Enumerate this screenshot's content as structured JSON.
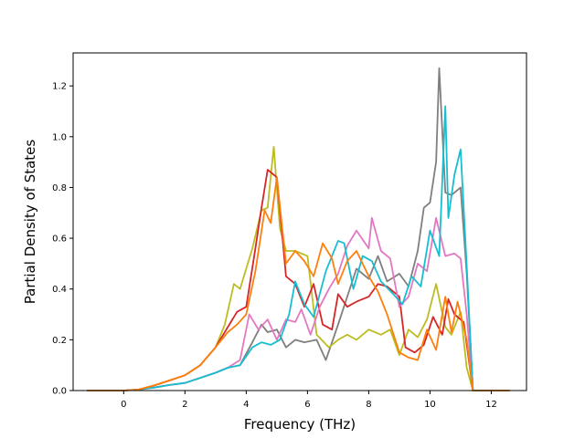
{
  "chart_data": {
    "type": "line",
    "title": "",
    "xlabel": "Frequency (THz)",
    "ylabel": "Partial Density of States",
    "xlim": [
      -1.65,
      13.15
    ],
    "ylim": [
      0.0,
      1.33
    ],
    "xticks": [
      0,
      2,
      4,
      6,
      8,
      10,
      12
    ],
    "yticks": [
      0.0,
      0.2,
      0.4,
      0.6,
      0.8,
      1.0,
      1.2
    ],
    "xtick_labels": [
      "0",
      "2",
      "4",
      "6",
      "8",
      "10",
      "12"
    ],
    "ytick_labels": [
      "0.0",
      "0.2",
      "0.4",
      "0.6",
      "0.8",
      "1.0",
      "1.2"
    ],
    "grid": false,
    "legend": "none",
    "series": [
      {
        "color": "#7f7f7f",
        "x": [
          -1.2,
          0,
          0.5,
          1,
          1.5,
          2,
          2.5,
          3,
          3.4,
          3.8,
          4.2,
          4.5,
          4.7,
          5,
          5.3,
          5.6,
          5.9,
          6.3,
          6.6,
          7,
          7.3,
          7.6,
          8,
          8.3,
          8.6,
          9,
          9.3,
          9.6,
          9.8,
          10,
          10.2,
          10.3,
          10.5,
          10.7,
          11,
          11.2,
          11.4,
          12.6
        ],
        "y": [
          0,
          0,
          0.004,
          0.012,
          0.022,
          0.03,
          0.05,
          0.07,
          0.09,
          0.1,
          0.19,
          0.26,
          0.23,
          0.24,
          0.17,
          0.2,
          0.19,
          0.2,
          0.12,
          0.26,
          0.37,
          0.48,
          0.44,
          0.53,
          0.43,
          0.46,
          0.41,
          0.55,
          0.72,
          0.74,
          0.9,
          1.27,
          0.78,
          0.77,
          0.8,
          0.46,
          0,
          0
        ]
      },
      {
        "color": "#bcbd22",
        "x": [
          -1.2,
          0,
          0.5,
          1,
          1.5,
          2,
          2.5,
          3,
          3.3,
          3.6,
          3.8,
          4.2,
          4.5,
          4.7,
          4.9,
          5.1,
          5.3,
          5.6,
          6,
          6.3,
          6.7,
          7,
          7.3,
          7.6,
          8,
          8.4,
          8.7,
          9,
          9.3,
          9.6,
          9.9,
          10.2,
          10.5,
          10.7,
          11,
          11.2,
          11.4,
          12.6
        ],
        "y": [
          0,
          0,
          0.004,
          0.02,
          0.04,
          0.06,
          0.1,
          0.17,
          0.26,
          0.42,
          0.4,
          0.56,
          0.71,
          0.72,
          0.96,
          0.64,
          0.55,
          0.55,
          0.53,
          0.22,
          0.17,
          0.2,
          0.22,
          0.2,
          0.24,
          0.22,
          0.24,
          0.14,
          0.24,
          0.21,
          0.28,
          0.42,
          0.25,
          0.22,
          0.31,
          0.09,
          0,
          0
        ]
      },
      {
        "color": "#d62728",
        "x": [
          -1.2,
          0,
          0.5,
          1,
          1.5,
          2,
          2.5,
          3,
          3.4,
          3.7,
          4,
          4.3,
          4.5,
          4.7,
          5,
          5.3,
          5.6,
          5.9,
          6.2,
          6.5,
          6.8,
          7,
          7.3,
          7.6,
          8,
          8.3,
          8.6,
          9,
          9.2,
          9.5,
          9.8,
          10.1,
          10.4,
          10.6,
          10.8,
          11.1,
          11.4,
          12.6
        ],
        "y": [
          0,
          0,
          0.004,
          0.02,
          0.04,
          0.06,
          0.1,
          0.17,
          0.25,
          0.31,
          0.33,
          0.56,
          0.72,
          0.87,
          0.84,
          0.45,
          0.42,
          0.33,
          0.42,
          0.26,
          0.24,
          0.38,
          0.33,
          0.35,
          0.37,
          0.42,
          0.41,
          0.37,
          0.17,
          0.15,
          0.18,
          0.29,
          0.22,
          0.36,
          0.3,
          0.27,
          0,
          0
        ]
      },
      {
        "color": "#e377c2",
        "x": [
          -1.2,
          0,
          0.5,
          1,
          1.5,
          2,
          2.5,
          3,
          3.4,
          3.8,
          4.1,
          4.4,
          4.7,
          5,
          5.3,
          5.6,
          5.8,
          6.1,
          6.4,
          6.7,
          7,
          7.3,
          7.6,
          8,
          8.1,
          8.4,
          8.7,
          9,
          9.3,
          9.6,
          9.9,
          10.2,
          10.5,
          10.8,
          11,
          11.2,
          11.4,
          12.6
        ],
        "y": [
          0,
          0,
          0.004,
          0.012,
          0.022,
          0.03,
          0.05,
          0.07,
          0.09,
          0.12,
          0.3,
          0.24,
          0.28,
          0.2,
          0.28,
          0.27,
          0.32,
          0.22,
          0.33,
          0.4,
          0.46,
          0.57,
          0.63,
          0.56,
          0.68,
          0.55,
          0.52,
          0.33,
          0.37,
          0.5,
          0.47,
          0.68,
          0.53,
          0.54,
          0.52,
          0.3,
          0,
          0
        ]
      },
      {
        "color": "#17becf",
        "x": [
          -1.2,
          0,
          0.5,
          1,
          1.5,
          2,
          2.5,
          3,
          3.4,
          3.8,
          4.2,
          4.5,
          4.8,
          5.1,
          5.4,
          5.6,
          5.9,
          6.2,
          6.6,
          7,
          7.2,
          7.5,
          7.8,
          8.1,
          8.4,
          8.8,
          9.1,
          9.4,
          9.7,
          10,
          10.3,
          10.5,
          10.6,
          10.8,
          11,
          11.2,
          11.4,
          12.6
        ],
        "y": [
          0,
          0,
          0.004,
          0.012,
          0.022,
          0.03,
          0.05,
          0.07,
          0.09,
          0.1,
          0.17,
          0.19,
          0.18,
          0.2,
          0.3,
          0.43,
          0.34,
          0.29,
          0.47,
          0.59,
          0.58,
          0.4,
          0.53,
          0.51,
          0.43,
          0.38,
          0.34,
          0.45,
          0.41,
          0.63,
          0.53,
          1.12,
          0.68,
          0.85,
          0.95,
          0.49,
          0,
          0
        ]
      },
      {
        "color": "#ff7f0e",
        "x": [
          -1.2,
          0,
          0.5,
          1,
          1.5,
          2,
          2.5,
          3,
          3.4,
          3.7,
          4,
          4.3,
          4.6,
          4.8,
          5,
          5.3,
          5.6,
          5.9,
          6.2,
          6.5,
          6.8,
          7,
          7.3,
          7.6,
          8,
          8.3,
          8.6,
          9,
          9.3,
          9.6,
          9.9,
          10.2,
          10.5,
          10.7,
          10.9,
          11.2,
          11.4,
          12.6
        ],
        "y": [
          0,
          0,
          0.004,
          0.02,
          0.04,
          0.06,
          0.1,
          0.17,
          0.23,
          0.26,
          0.3,
          0.47,
          0.71,
          0.66,
          0.84,
          0.5,
          0.55,
          0.51,
          0.45,
          0.58,
          0.52,
          0.42,
          0.51,
          0.55,
          0.45,
          0.39,
          0.3,
          0.15,
          0.13,
          0.12,
          0.24,
          0.16,
          0.37,
          0.23,
          0.35,
          0.2,
          0,
          0
        ]
      }
    ]
  }
}
